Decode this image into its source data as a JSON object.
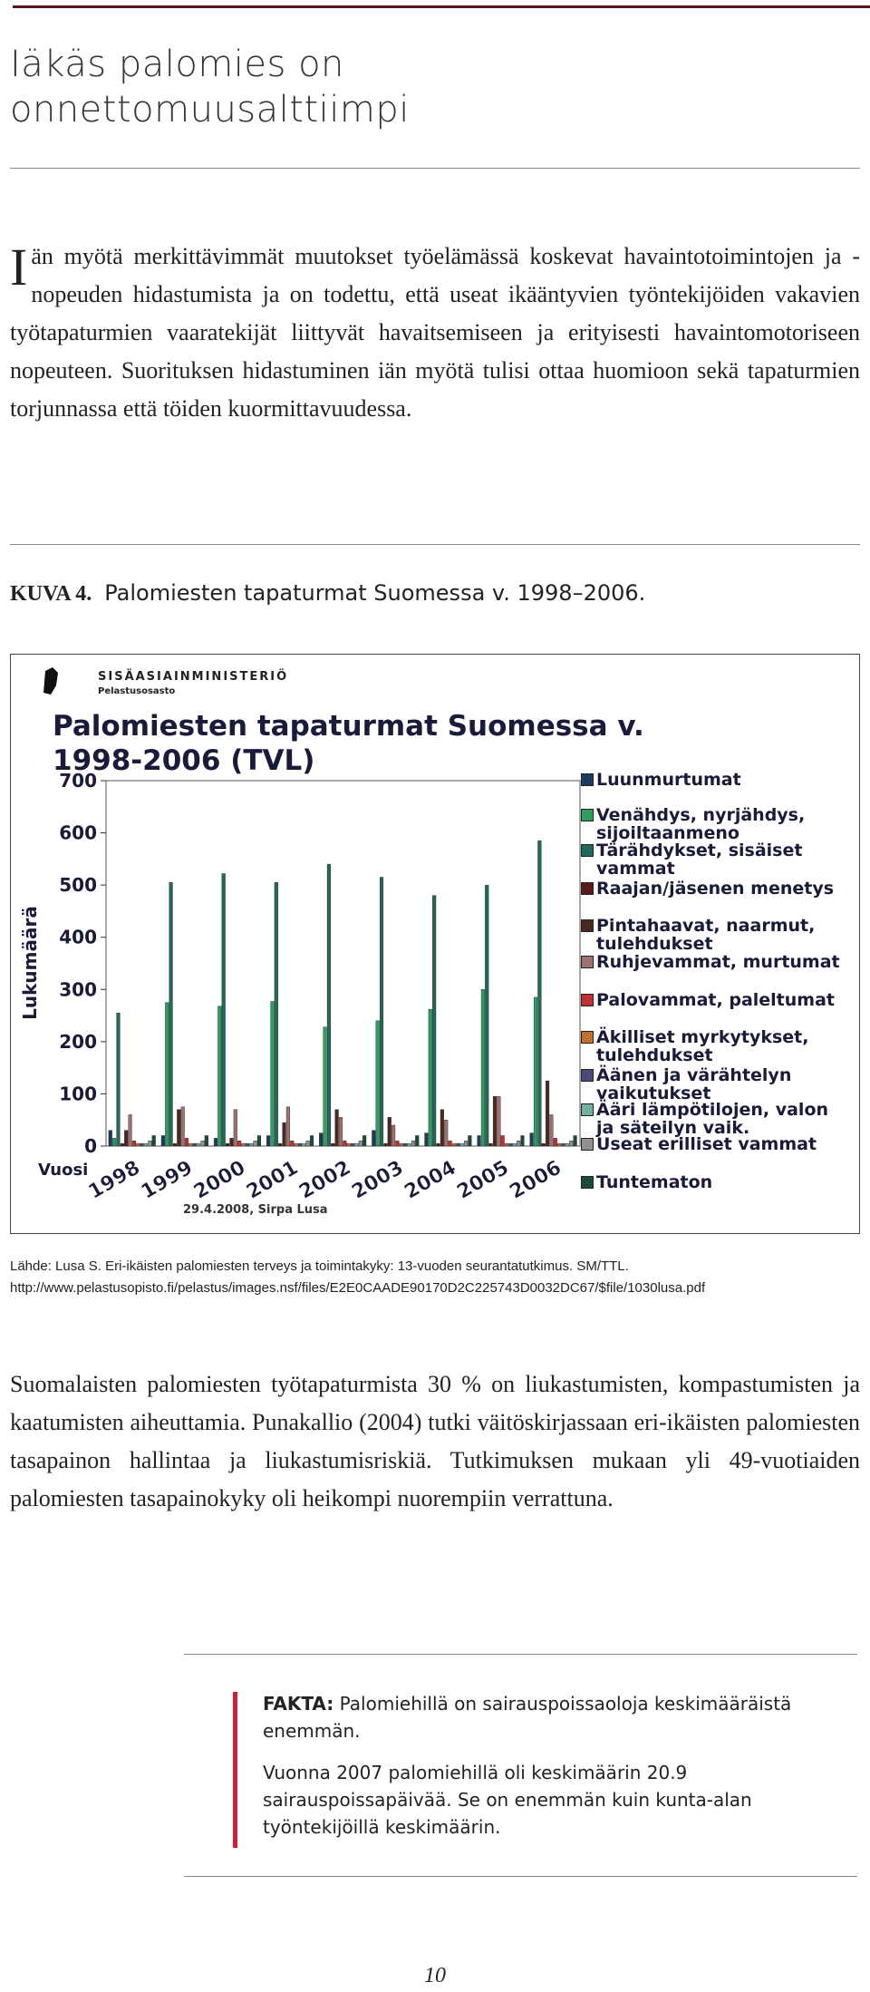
{
  "heading": "Iäkäs palomies on onnettomuusalttiimpi",
  "paragraph1": {
    "dropcap": "I",
    "text": "än myötä merkittävimmät muutokset työelämässä koskevat havaintotoimintojen ja -nopeuden hidastumista ja on todettu, että useat ikääntyvien työntekijöiden vakavien työtapaturmien vaaratekijät liittyvät havaitsemiseen ja erityisesti havaintomotoriseen nopeuteen. Suorituksen hidastuminen iän myötä tulisi ottaa huomioon sekä tapaturmien torjunnassa että töiden kuormittavuudessa."
  },
  "figure": {
    "label": "KUVA 4.",
    "caption": "Palomiesten tapaturmat Suomessa v. 1998–2006."
  },
  "chart_data": {
    "type": "bar",
    "organization": "SISÄASIAINMINISTERIÖ",
    "department": "Pelastusosasto",
    "title": "Palomiesten tapaturmat Suomessa v. 1998-2006 (TVL)",
    "y_label": "Lukumäärä",
    "x_label": "Vuosi",
    "footnote": "29.4.2008, Sirpa Lusa",
    "categories": [
      "1998",
      "1999",
      "2000",
      "2001",
      "2002",
      "2003",
      "2004",
      "2005",
      "2006"
    ],
    "ylim": [
      0,
      700
    ],
    "yticks": [
      0,
      100,
      200,
      300,
      400,
      500,
      600,
      700
    ],
    "series": [
      {
        "name": "Luunmurtumat",
        "color": "#1f3a5f",
        "values": [
          30,
          20,
          15,
          20,
          25,
          30,
          25,
          20,
          25
        ]
      },
      {
        "name": "Venähdys, nyrjähdys, sijoiltaanmeno",
        "color": "#2e9e5e",
        "values": [
          15,
          275,
          268,
          277,
          228,
          240,
          262,
          300,
          285
        ]
      },
      {
        "name": "Tärähdykset, sisäiset vammat",
        "color": "#1f6a5a",
        "values": [
          255,
          505,
          522,
          505,
          540,
          515,
          480,
          500,
          585
        ]
      },
      {
        "name": "Raajan/jäsenen menetys",
        "color": "#5a1a1a",
        "values": [
          5,
          5,
          5,
          5,
          5,
          5,
          5,
          5,
          5
        ]
      },
      {
        "name": "Pintahaavat, naarmut, tulehdukset",
        "color": "#4a2a20",
        "values": [
          30,
          70,
          15,
          45,
          70,
          55,
          70,
          95,
          125
        ]
      },
      {
        "name": "Ruhjevammat, murtumat",
        "color": "#a07070",
        "values": [
          60,
          75,
          70,
          75,
          55,
          40,
          50,
          95,
          60
        ]
      },
      {
        "name": "Palovammat, paleltumat",
        "color": "#c03030",
        "values": [
          10,
          15,
          10,
          10,
          10,
          10,
          10,
          20,
          15
        ]
      },
      {
        "name": "Äkilliset myrkytykset, tulehdukset",
        "color": "#c07030",
        "values": [
          5,
          5,
          5,
          5,
          5,
          5,
          5,
          5,
          5
        ]
      },
      {
        "name": "Äänen ja värähtelyn vaikutukset",
        "color": "#4a4a7a",
        "values": [
          5,
          5,
          5,
          5,
          5,
          5,
          5,
          5,
          5
        ]
      },
      {
        "name": "Ääri lämpötilojen, valon ja säteilyn vaik.",
        "color": "#70b0a0",
        "values": [
          5,
          5,
          5,
          5,
          5,
          5,
          5,
          5,
          5
        ]
      },
      {
        "name": "Useat erilliset vammat",
        "color": "#909090",
        "values": [
          10,
          10,
          10,
          10,
          10,
          10,
          10,
          10,
          10
        ]
      },
      {
        "name": "Tuntematon",
        "color": "#1a4a3a",
        "values": [
          20,
          20,
          20,
          20,
          20,
          20,
          20,
          20,
          20
        ]
      }
    ]
  },
  "source": [
    "Lähde: Lusa S. Eri-ikäisten palomiesten terveys ja toimintakyky: 13-vuoden seurantatutkimus. SM/TTL.",
    "http://www.pelastusopisto.fi/pelastus/images.nsf/files/E2E0CAADE90170D2C225743D0032DC67/$file/1030lusa.pdf"
  ],
  "paragraph2": "Suomalaisten palomiesten työtapaturmista 30 % on liukastumisten, kompastumisten ja kaatumisten aiheuttamia. Punakallio (2004) tutki väitöskirjassaan eri-ikäisten palomiesten tasapainon hallintaa ja liukastumisriskiä. Tutkimuksen mukaan yli 49-vuotiaiden palomiesten tasapainokyky oli heikompi nuorempiin verrattuna.",
  "fact": {
    "label": "FAKTA:",
    "lead": "Palomiehillä on sairauspoissaoloja keskimääräistä enemmän.",
    "text": "Vuonna 2007 palomiehillä oli keskimäärin 20.9 sairauspoissapäivää. Se on enemmän kuin kunta-alan työntekijöillä keskimäärin."
  },
  "page_number": "10"
}
